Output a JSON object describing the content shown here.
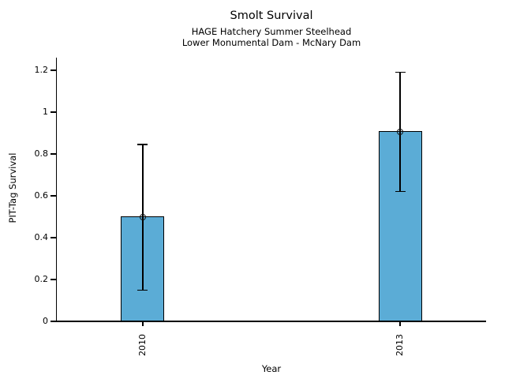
{
  "chart_data": {
    "type": "bar",
    "title": "Smolt Survival",
    "subtitle1": "HAGE Hatchery Summer Steelhead",
    "subtitle2": "Lower Monumental Dam - McNary Dam",
    "xlabel": "Year",
    "ylabel": "PIT-Tag Survival",
    "categories": [
      "2010",
      "2013"
    ],
    "values": [
      0.5,
      0.905
    ],
    "error_low": [
      0.15,
      0.62
    ],
    "error_high": [
      0.845,
      1.19
    ],
    "yticks": [
      {
        "value": 0,
        "label": "0"
      },
      {
        "value": 0.2,
        "label": "0.2"
      },
      {
        "value": 0.4,
        "label": "0.4"
      },
      {
        "value": 0.6,
        "label": "0.6"
      },
      {
        "value": 0.8,
        "label": "0.8"
      },
      {
        "value": 1,
        "label": "1"
      },
      {
        "value": 1.2,
        "label": "1.2"
      }
    ],
    "ylim": [
      0,
      1.26
    ],
    "grid": false,
    "legend": "none",
    "marker": "open-circle",
    "bar_color": "#5BACD6",
    "bar_edge_color": "#000000",
    "error_bar_color": "#000000",
    "text_color": "#000000"
  }
}
